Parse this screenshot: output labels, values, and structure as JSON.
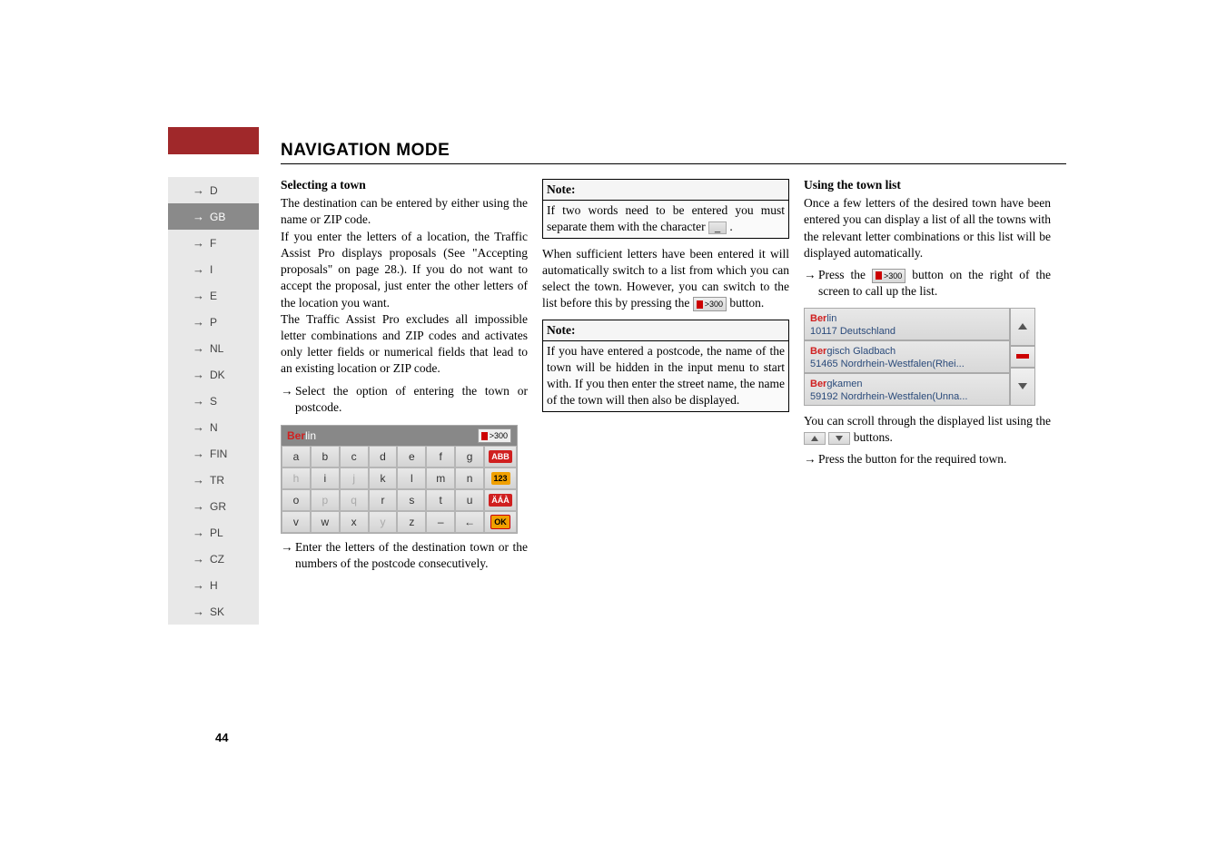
{
  "header": {
    "title": "NAVIGATION MODE",
    "arrows": "→→→"
  },
  "sidebar": {
    "items": [
      {
        "arrow": "→",
        "code": "D"
      },
      {
        "arrow": "→",
        "code": "GB"
      },
      {
        "arrow": "→",
        "code": "F"
      },
      {
        "arrow": "→",
        "code": "I"
      },
      {
        "arrow": "→",
        "code": "E"
      },
      {
        "arrow": "→",
        "code": "P"
      },
      {
        "arrow": "→",
        "code": "NL"
      },
      {
        "arrow": "→",
        "code": "DK"
      },
      {
        "arrow": "→",
        "code": "S"
      },
      {
        "arrow": "→",
        "code": "N"
      },
      {
        "arrow": "→",
        "code": "FIN"
      },
      {
        "arrow": "→",
        "code": "TR"
      },
      {
        "arrow": "→",
        "code": "GR"
      },
      {
        "arrow": "→",
        "code": "PL"
      },
      {
        "arrow": "→",
        "code": "CZ"
      },
      {
        "arrow": "→",
        "code": "H"
      },
      {
        "arrow": "→",
        "code": "SK"
      }
    ],
    "activeIndex": 1
  },
  "col1": {
    "h": "Selecting a town",
    "p1": "The destination can be entered by either using the name or ZIP code.",
    "p2": "If you enter the letters of a location, the Traffic Assist Pro displays proposals (See \"Accepting proposals\" on page 28.). If you do not want to accept the proposal, just enter the other letters of the location you want.",
    "p3": "The Traffic Assist Pro excludes all impossible letter combinations and ZIP codes and activates only letter fields or numerical fields that lead to an existing location or ZIP code.",
    "instr1": "Select the option of entering the town or postcode.",
    "instr2": "Enter the letters of the destination town or the numbers of the postcode consecutively."
  },
  "keyboard": {
    "header_red": "Ber",
    "header_plain": "lin",
    "btn300": ">300",
    "rows": [
      [
        {
          "t": "a"
        },
        {
          "t": "b"
        },
        {
          "t": "c"
        },
        {
          "t": "d"
        },
        {
          "t": "e"
        },
        {
          "t": "f"
        },
        {
          "t": "g"
        }
      ],
      [
        {
          "t": "h",
          "d": 1
        },
        {
          "t": "i"
        },
        {
          "t": "j",
          "d": 1
        },
        {
          "t": "k"
        },
        {
          "t": "l"
        },
        {
          "t": "m"
        },
        {
          "t": "n"
        }
      ],
      [
        {
          "t": "o"
        },
        {
          "t": "p",
          "d": 1
        },
        {
          "t": "q",
          "d": 1
        },
        {
          "t": "r"
        },
        {
          "t": "s"
        },
        {
          "t": "t"
        },
        {
          "t": "u"
        }
      ],
      [
        {
          "t": "v"
        },
        {
          "t": "w"
        },
        {
          "t": "x"
        },
        {
          "t": "y",
          "d": 1
        },
        {
          "t": "z"
        },
        {
          "t": "–"
        },
        {
          "t": "←"
        }
      ]
    ],
    "side": [
      "ABB",
      "123",
      "ÄÁÀ",
      "OK"
    ]
  },
  "col2": {
    "note1_h": "Note:",
    "note1_b_a": "If two words need to be entered you must separate them with the character ",
    "note1_b_b": ".",
    "key_underscore": "_",
    "p1_a": "When sufficient letters have been entered it will automatically switch to a list from which you can select the town. However, you can switch to the list before this by pressing the ",
    "p1_b": " button.",
    "btn300": ">300",
    "note2_h": "Note:",
    "note2_b": "If you have entered a postcode, the name of the town will be hidden in the input menu to start with. If you then enter the street name, the name of the town will then also be displayed."
  },
  "col3": {
    "h": "Using the town list",
    "p1": "Once a few letters of the desired town have been entered you can display a list of all the towns with the relevant letter combinations or this list will be displayed automatically.",
    "instr1_a": "Press the ",
    "instr1_b": " button on the right of the screen to call up the list.",
    "btn300": ">300",
    "list": [
      {
        "red": "Ber",
        "rest": "lin",
        "sub": "10117 Deutschland"
      },
      {
        "red": "Ber",
        "rest": "gisch Gladbach",
        "sub": "51465 Nordrhein-Westfalen(Rhei..."
      },
      {
        "red": "Ber",
        "rest": "gkamen",
        "sub": "59192 Nordrhein-Westfalen(Unna..."
      }
    ],
    "p2_a": "You can scroll through the displayed list using the ",
    "p2_b": " buttons.",
    "instr2": "Press the button for the required town."
  },
  "page": "44"
}
